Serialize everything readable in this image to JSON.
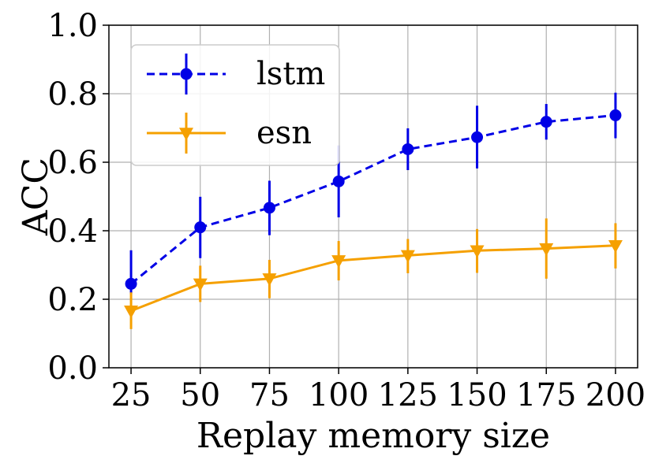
{
  "chart_data": {
    "type": "line",
    "title": "",
    "xlabel": "Replay memory size",
    "ylabel": "ACC",
    "x": [
      25,
      50,
      75,
      100,
      125,
      150,
      175,
      200
    ],
    "xticks": [
      "25",
      "50",
      "75",
      "100",
      "125",
      "150",
      "175",
      "200"
    ],
    "ylim": [
      0.0,
      1.0
    ],
    "yticks": [
      "0.0",
      "0.2",
      "0.4",
      "0.6",
      "0.8",
      "1.0"
    ],
    "grid": true,
    "legend_position": "upper-left",
    "series": [
      {
        "name": "lstm",
        "color": "#0000e6",
        "line_style": "dashed",
        "marker": "circle",
        "values": [
          0.245,
          0.41,
          0.467,
          0.544,
          0.638,
          0.673,
          0.718,
          0.737
        ],
        "err_low": [
          0.215,
          0.32,
          0.387,
          0.439,
          0.577,
          0.582,
          0.666,
          0.67
        ],
        "err_high": [
          0.343,
          0.499,
          0.546,
          0.649,
          0.699,
          0.765,
          0.77,
          0.803
        ]
      },
      {
        "name": "esn",
        "color": "#f5a000",
        "line_style": "solid",
        "marker": "triangle-down",
        "values": [
          0.166,
          0.245,
          0.26,
          0.313,
          0.328,
          0.342,
          0.348,
          0.357
        ],
        "err_low": [
          0.113,
          0.192,
          0.203,
          0.255,
          0.276,
          0.277,
          0.26,
          0.29
        ],
        "err_high": [
          0.22,
          0.298,
          0.315,
          0.37,
          0.376,
          0.405,
          0.436,
          0.422
        ]
      }
    ]
  }
}
